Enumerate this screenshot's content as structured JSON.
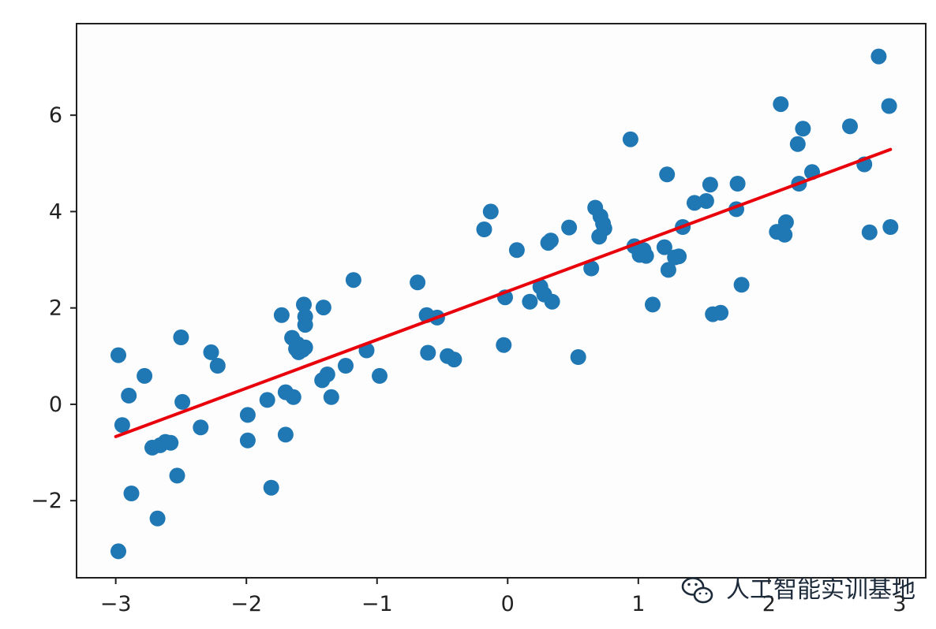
{
  "chart_data": {
    "type": "scatter",
    "title": "",
    "xlabel": "",
    "ylabel": "",
    "xlim": [
      -3.3,
      3.2
    ],
    "ylim": [
      -3.6,
      7.9
    ],
    "grid": false,
    "x_ticks": [
      -3,
      -2,
      -1,
      0,
      1,
      2,
      3
    ],
    "x_tick_labels": [
      "−3",
      "−2",
      "−1",
      "0",
      "1",
      "2",
      "3"
    ],
    "y_ticks": [
      -2,
      0,
      2,
      4,
      6
    ],
    "y_tick_labels": [
      "−2",
      "0",
      "2",
      "4",
      "6"
    ],
    "series": [
      {
        "kind": "scatter",
        "color": "#1f77b4",
        "points": [
          [
            -2.98,
            -3.05
          ],
          [
            -2.98,
            1.02
          ],
          [
            -2.95,
            -0.43
          ],
          [
            -2.9,
            0.18
          ],
          [
            -2.88,
            -1.85
          ],
          [
            -2.78,
            0.59
          ],
          [
            -2.72,
            -0.9
          ],
          [
            -2.68,
            -2.37
          ],
          [
            -2.66,
            -0.85
          ],
          [
            -2.62,
            -0.78
          ],
          [
            -2.58,
            -0.8
          ],
          [
            -2.53,
            -1.48
          ],
          [
            -2.5,
            1.39
          ],
          [
            -2.49,
            0.05
          ],
          [
            -2.35,
            -0.48
          ],
          [
            -2.27,
            1.08
          ],
          [
            -2.22,
            0.8
          ],
          [
            -1.99,
            -0.22
          ],
          [
            -1.99,
            -0.75
          ],
          [
            -1.84,
            0.09
          ],
          [
            -1.81,
            -1.73
          ],
          [
            -1.73,
            1.85
          ],
          [
            -1.7,
            0.25
          ],
          [
            -1.7,
            -0.63
          ],
          [
            -1.65,
            1.38
          ],
          [
            -1.64,
            0.15
          ],
          [
            -1.62,
            1.15
          ],
          [
            -1.61,
            1.25
          ],
          [
            -1.6,
            1.08
          ],
          [
            -1.57,
            1.13
          ],
          [
            -1.56,
            2.07
          ],
          [
            -1.55,
            1.18
          ],
          [
            -1.55,
            1.65
          ],
          [
            -1.55,
            1.82
          ],
          [
            -1.42,
            0.5
          ],
          [
            -1.41,
            2.01
          ],
          [
            -1.38,
            0.62
          ],
          [
            -1.35,
            0.15
          ],
          [
            -1.24,
            0.8
          ],
          [
            -1.18,
            2.58
          ],
          [
            -1.08,
            1.12
          ],
          [
            -0.98,
            0.59
          ],
          [
            -0.69,
            2.53
          ],
          [
            -0.62,
            1.85
          ],
          [
            -0.61,
            1.07
          ],
          [
            -0.54,
            1.8
          ],
          [
            -0.46,
            1.0
          ],
          [
            -0.41,
            0.93
          ],
          [
            -0.18,
            3.63
          ],
          [
            -0.13,
            4.0
          ],
          [
            -0.03,
            1.23
          ],
          [
            -0.02,
            2.22
          ],
          [
            0.07,
            3.2
          ],
          [
            0.17,
            2.13
          ],
          [
            0.25,
            2.44
          ],
          [
            0.28,
            2.28
          ],
          [
            0.31,
            3.35
          ],
          [
            0.33,
            3.4
          ],
          [
            0.34,
            2.13
          ],
          [
            0.47,
            3.67
          ],
          [
            0.54,
            0.98
          ],
          [
            0.64,
            2.82
          ],
          [
            0.67,
            4.08
          ],
          [
            0.7,
            3.48
          ],
          [
            0.71,
            3.9
          ],
          [
            0.73,
            3.75
          ],
          [
            0.74,
            3.65
          ],
          [
            0.94,
            5.5
          ],
          [
            0.97,
            3.28
          ],
          [
            1.01,
            3.1
          ],
          [
            1.04,
            3.2
          ],
          [
            1.06,
            3.08
          ],
          [
            1.11,
            2.07
          ],
          [
            1.2,
            3.26
          ],
          [
            1.22,
            4.77
          ],
          [
            1.23,
            2.79
          ],
          [
            1.28,
            3.05
          ],
          [
            1.31,
            3.07
          ],
          [
            1.34,
            3.68
          ],
          [
            1.43,
            4.18
          ],
          [
            1.52,
            4.22
          ],
          [
            1.55,
            4.56
          ],
          [
            1.57,
            1.87
          ],
          [
            1.63,
            1.9
          ],
          [
            1.75,
            4.05
          ],
          [
            1.76,
            4.58
          ],
          [
            1.79,
            2.48
          ],
          [
            2.06,
            3.58
          ],
          [
            2.09,
            6.23
          ],
          [
            2.12,
            3.52
          ],
          [
            2.13,
            3.78
          ],
          [
            2.22,
            5.4
          ],
          [
            2.23,
            4.58
          ],
          [
            2.26,
            5.72
          ],
          [
            2.33,
            4.82
          ],
          [
            2.62,
            5.77
          ],
          [
            2.73,
            4.98
          ],
          [
            2.77,
            3.57
          ],
          [
            2.84,
            7.22
          ],
          [
            2.92,
            6.19
          ],
          [
            2.93,
            3.68
          ]
        ]
      },
      {
        "kind": "line",
        "color": "#e8000b",
        "x": [
          -3.0,
          2.93
        ],
        "y": [
          -0.67,
          5.29
        ]
      }
    ],
    "watermark": "人工智能实训基地"
  }
}
